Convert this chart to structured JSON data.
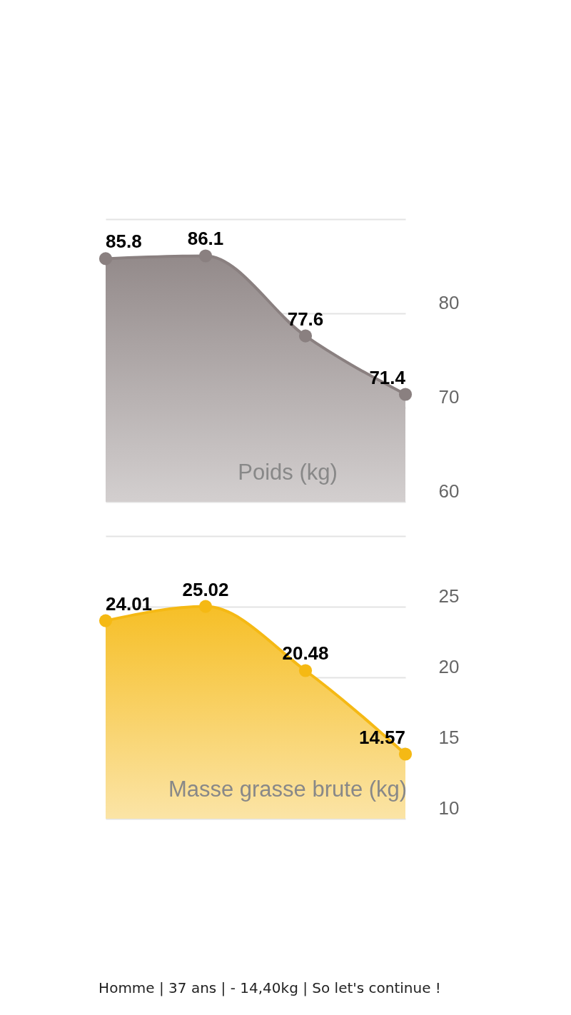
{
  "chart_data": [
    {
      "type": "area",
      "title": "Poids (kg)",
      "categories": [
        null,
        null,
        null,
        null
      ],
      "series": [
        {
          "color": "#8a8080",
          "values": [
            85.8,
            86.1,
            77.6,
            71.4
          ]
        }
      ],
      "ylim": [
        60,
        90
      ],
      "yticks": [
        60,
        70,
        80,
        {
          "value": 90,
          "label": null
        }
      ],
      "grid": "y",
      "tick_labels": "y",
      "marker": "circle",
      "data_labels": true
    },
    {
      "type": "area",
      "title": "Masse grasse brute (kg)",
      "categories": [
        null,
        null,
        null,
        null
      ],
      "series": [
        {
          "color": "#f5b914",
          "values": [
            24.01,
            25.02,
            20.48,
            14.57
          ]
        }
      ],
      "ylim": [
        10,
        30
      ],
      "yticks": [
        10,
        15,
        20,
        25,
        {
          "value": 30,
          "label": null
        }
      ],
      "grid": "y",
      "tick_labels": "y",
      "marker": "circle",
      "data_labels": true,
      "annotations": [
        "Homme | 37 ans | - 14,40kg | So let's continue !"
      ]
    }
  ]
}
